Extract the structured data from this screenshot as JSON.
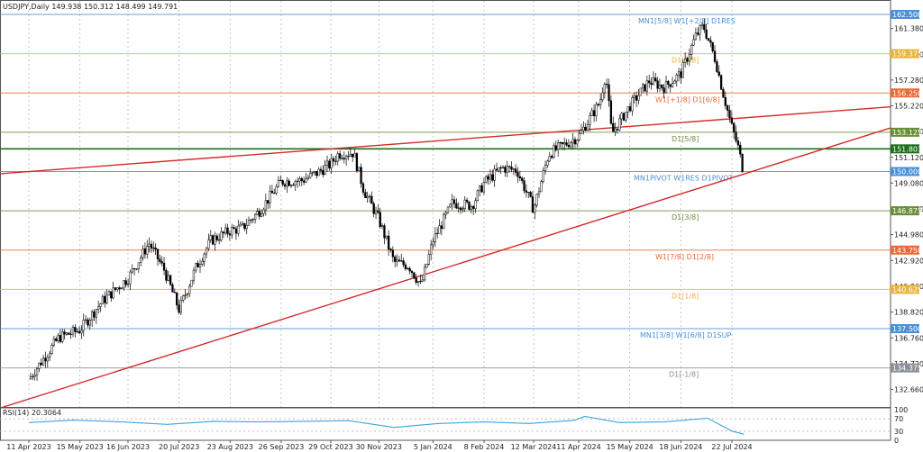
{
  "chart_data": {
    "type": "candlestick",
    "symbol_line": "USDJPY,Daily  149.938 150.312 148.499 149.791",
    "y_ticks": [
      "161.380",
      "159.320",
      "157.280",
      "155.220",
      "153.170",
      "151.120",
      "149.080",
      "147.020",
      "144.980",
      "142.920",
      "140.860",
      "138.820",
      "136.760",
      "134.720",
      "132.660"
    ],
    "x_ticks": [
      "11 Apr 2023",
      "15 May 2023",
      "16 Jun 2023",
      "20 Jul 2023",
      "23 Aug 2023",
      "26 Sep 2023",
      "29 Oct 2023",
      "30 Nov 2023",
      "5 Jan 2024",
      "8 Feb 2024",
      "12 Mar 2024",
      "11 Apr 2024",
      "15 May 2024",
      "18 Jun 2024",
      "22 Jul 2024"
    ],
    "levels": [
      {
        "price": 162.5,
        "label": "MN1[5/8] W1[+2/8] D1RES",
        "tag": "162.500",
        "color": "#4a90d9"
      },
      {
        "price": 159.375,
        "label": "D1[7/8]",
        "tag": "159.375",
        "color": "#e8b43c"
      },
      {
        "price": 156.25,
        "label": "W1[+1/8] D1[6/8]",
        "tag": "156.250",
        "color": "#e86a3a"
      },
      {
        "price": 153.125,
        "label": "D1[5/8]",
        "tag": "153.125",
        "color": "#6a8f3a"
      },
      {
        "price": 151.803,
        "label": "",
        "tag": "151.803",
        "color": "#1f6e1f"
      },
      {
        "price": 150.0,
        "label": "MN1PIVOT W1RES D1PIVOT",
        "tag": "150.000",
        "color": "#4a90d9"
      },
      {
        "price": 146.875,
        "label": "D1[3/8]",
        "tag": "146.875",
        "color": "#6a8f3a"
      },
      {
        "price": 143.75,
        "label": "W1[7/8] D1[2/8]",
        "tag": "143.750",
        "color": "#e86a3a"
      },
      {
        "price": 140.625,
        "label": "D1[1/8]",
        "tag": "140.625",
        "color": "#e8b43c"
      },
      {
        "price": 137.5,
        "label": "MN1[3/8] W1[6/8] D1SUP",
        "tag": "137.500",
        "color": "#4a90d9"
      },
      {
        "price": 134.375,
        "label": "D1[-1/8]",
        "tag": "134.375",
        "color": "#8a8f99"
      }
    ],
    "trendlines": [
      {
        "start": {
          "x": "11 Apr 2023",
          "y": 150.0
        },
        "end": {
          "x": "22 Jul 2024",
          "y": 154.2
        }
      },
      {
        "start": {
          "x": "11 Apr 2023",
          "y": 131.9
        },
        "end": {
          "x": "22 Jul 2024",
          "y": 149.5
        }
      }
    ],
    "close_path": [
      {
        "x": "11 Apr 2023",
        "y": 133.5
      },
      {
        "x": "1 May 2023",
        "y": 136.8
      },
      {
        "x": "15 May 2023",
        "y": 137.4
      },
      {
        "x": "30 May 2023",
        "y": 139.7
      },
      {
        "x": "16 Jun 2023",
        "y": 141.5
      },
      {
        "x": "30 Jun 2023",
        "y": 144.3
      },
      {
        "x": "10 Jul 2023",
        "y": 142.2
      },
      {
        "x": "20 Jul 2023",
        "y": 139.0
      },
      {
        "x": "31 Jul 2023",
        "y": 142.3
      },
      {
        "x": "10 Aug 2023",
        "y": 144.5
      },
      {
        "x": "23 Aug 2023",
        "y": 145.3
      },
      {
        "x": "31 Aug 2023",
        "y": 145.5
      },
      {
        "x": "11 Sep 2023",
        "y": 146.8
      },
      {
        "x": "26 Sep 2023",
        "y": 149.2
      },
      {
        "x": "10 Oct 2023",
        "y": 149.3
      },
      {
        "x": "20 Oct 2023",
        "y": 149.9
      },
      {
        "x": "29 Oct 2023",
        "y": 150.6
      },
      {
        "x": "3 Nov 2023",
        "y": 151.4
      },
      {
        "x": "13 Nov 2023",
        "y": 151.5
      },
      {
        "x": "20 Nov 2023",
        "y": 148.5
      },
      {
        "x": "30 Nov 2023",
        "y": 146.2
      },
      {
        "x": "10 Dec 2023",
        "y": 142.8
      },
      {
        "x": "20 Dec 2023",
        "y": 142.5
      },
      {
        "x": "28 Dec 2023",
        "y": 140.9
      },
      {
        "x": "5 Jan 2024",
        "y": 144.5
      },
      {
        "x": "18 Jan 2024",
        "y": 147.5
      },
      {
        "x": "31 Jan 2024",
        "y": 147.3
      },
      {
        "x": "8 Feb 2024",
        "y": 149.1
      },
      {
        "x": "20 Feb 2024",
        "y": 150.3
      },
      {
        "x": "1 Mar 2024",
        "y": 150.1
      },
      {
        "x": "12 Mar 2024",
        "y": 147.0
      },
      {
        "x": "22 Mar 2024",
        "y": 151.4
      },
      {
        "x": "11 Apr 2024",
        "y": 152.8
      },
      {
        "x": "25 Apr 2024",
        "y": 155.5
      },
      {
        "x": "29 Apr 2024",
        "y": 157.8
      },
      {
        "x": "3 May 2024",
        "y": 153.0
      },
      {
        "x": "15 May 2024",
        "y": 155.2
      },
      {
        "x": "28 May 2024",
        "y": 157.2
      },
      {
        "x": "7 Jun 2024",
        "y": 156.7
      },
      {
        "x": "18 Jun 2024",
        "y": 157.8
      },
      {
        "x": "28 Jun 2024",
        "y": 160.8
      },
      {
        "x": "3 Jul 2024",
        "y": 161.6
      },
      {
        "x": "11 Jul 2024",
        "y": 158.9
      },
      {
        "x": "16 Jul 2024",
        "y": 156.3
      },
      {
        "x": "22 Jul 2024",
        "y": 153.5
      },
      {
        "x": "26 Jul 2024",
        "y": 152.0
      },
      {
        "x": "30 Jul 2024",
        "y": 149.8
      }
    ],
    "rsi": {
      "label": "RSI(14) 20.3064",
      "ticks": [
        "100",
        "70",
        "30",
        "0"
      ],
      "values": [
        {
          "x": "11 Apr 2023",
          "y": 58
        },
        {
          "x": "11 May 2023",
          "y": 66
        },
        {
          "x": "12 Jun 2023",
          "y": 60
        },
        {
          "x": "12 Jul 2023",
          "y": 52
        },
        {
          "x": "12 Aug 2023",
          "y": 62
        },
        {
          "x": "11 Sep 2023",
          "y": 60
        },
        {
          "x": "11 Oct 2023",
          "y": 62
        },
        {
          "x": "10 Nov 2023",
          "y": 64
        },
        {
          "x": "10 Dec 2023",
          "y": 42
        },
        {
          "x": "9 Jan 2024",
          "y": 55
        },
        {
          "x": "8 Feb 2024",
          "y": 60
        },
        {
          "x": "9 Mar 2024",
          "y": 55
        },
        {
          "x": "8 Apr 2024",
          "y": 65
        },
        {
          "x": "15 Apr 2024",
          "y": 78
        },
        {
          "x": "8 May 2024",
          "y": 58
        },
        {
          "x": "7 Jun 2024",
          "y": 60
        },
        {
          "x": "1 Jul 2024",
          "y": 70
        },
        {
          "x": "6 Jul 2024",
          "y": 72
        },
        {
          "x": "22 Jul 2024",
          "y": 30
        },
        {
          "x": "30 Jul 2024",
          "y": 20
        }
      ]
    }
  }
}
